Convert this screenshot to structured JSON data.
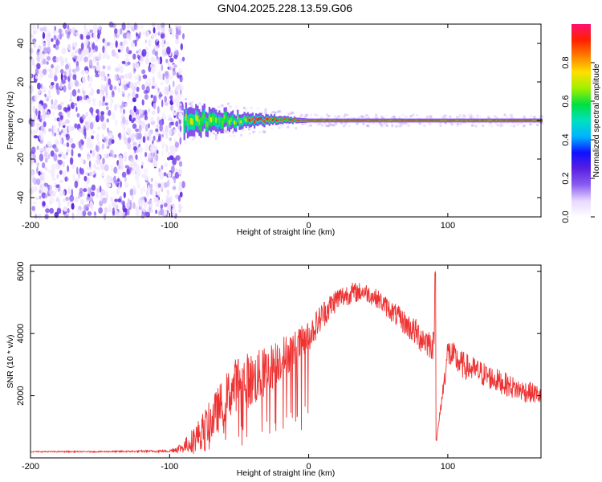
{
  "title": "GN04.2025.228.13.59.G06",
  "chart_data": [
    {
      "type": "heatmap",
      "xlabel": "Height of straight line (km)",
      "ylabel": "Frequency (Hz)",
      "xlim": [
        -200,
        167
      ],
      "ylim": [
        -50,
        50
      ],
      "xticks": [
        -200,
        -100,
        0,
        100
      ],
      "yticks": [
        -40,
        -20,
        0,
        20,
        40
      ],
      "colorbar": {
        "label": "Normalized spectral amplitude",
        "range": [
          0,
          1
        ],
        "ticks": [
          "0.0",
          "0.2",
          "0.4",
          "0.6",
          "0.8"
        ],
        "tick_values": [
          0.0,
          0.2,
          0.4,
          0.6,
          0.8
        ],
        "palette": [
          "#ffffff",
          "#e8d8ff",
          "#8a5cf0",
          "#5a1fe0",
          "#1010ff",
          "#00b4ff",
          "#00e0c0",
          "#00e040",
          "#a0f000",
          "#ffe000",
          "#ff8000",
          "#ff2000",
          "#ff1070"
        ]
      },
      "noise_region_x": [
        -200,
        -90
      ],
      "carrier_frequency_hz": 0,
      "description_points": [
        {
          "x": -90,
          "y_spread": 8
        },
        {
          "x": -50,
          "y_spread": 4
        },
        {
          "x": -20,
          "y_spread": 2
        },
        {
          "x": 0,
          "y_spread": 1
        }
      ]
    },
    {
      "type": "line",
      "xlabel": "Height of straight line (km)",
      "ylabel": "SNR (10 * v/v)",
      "xlim": [
        -200,
        167
      ],
      "ylim": [
        0,
        6200
      ],
      "xticks": [
        -200,
        -100,
        0,
        100
      ],
      "yticks": [
        2000,
        4000,
        6000
      ],
      "series": [
        {
          "color": "#ee3333",
          "x": [
            -200,
            -150,
            -100,
            -90,
            -80,
            -70,
            -60,
            -50,
            -40,
            -30,
            -20,
            -10,
            0,
            10,
            20,
            30,
            40,
            50,
            60,
            70,
            80,
            90,
            91,
            92,
            100,
            110,
            120,
            130,
            140,
            150,
            160,
            167
          ],
          "y": [
            200,
            200,
            220,
            350,
            700,
            1200,
            1900,
            2500,
            2500,
            2800,
            3200,
            3500,
            3900,
            4600,
            5100,
            5300,
            5350,
            5100,
            4700,
            4300,
            3900,
            3600,
            5900,
            600,
            3400,
            3000,
            2800,
            2600,
            2400,
            2200,
            2100,
            2000
          ],
          "noise_amplitude": [
            20,
            20,
            40,
            200,
            500,
            700,
            800,
            900,
            900,
            800,
            700,
            600,
            500,
            450,
            400,
            350,
            300,
            300,
            350,
            400,
            500,
            500,
            0,
            0,
            500,
            450,
            420,
            400,
            380,
            360,
            340,
            320
          ]
        }
      ]
    }
  ]
}
